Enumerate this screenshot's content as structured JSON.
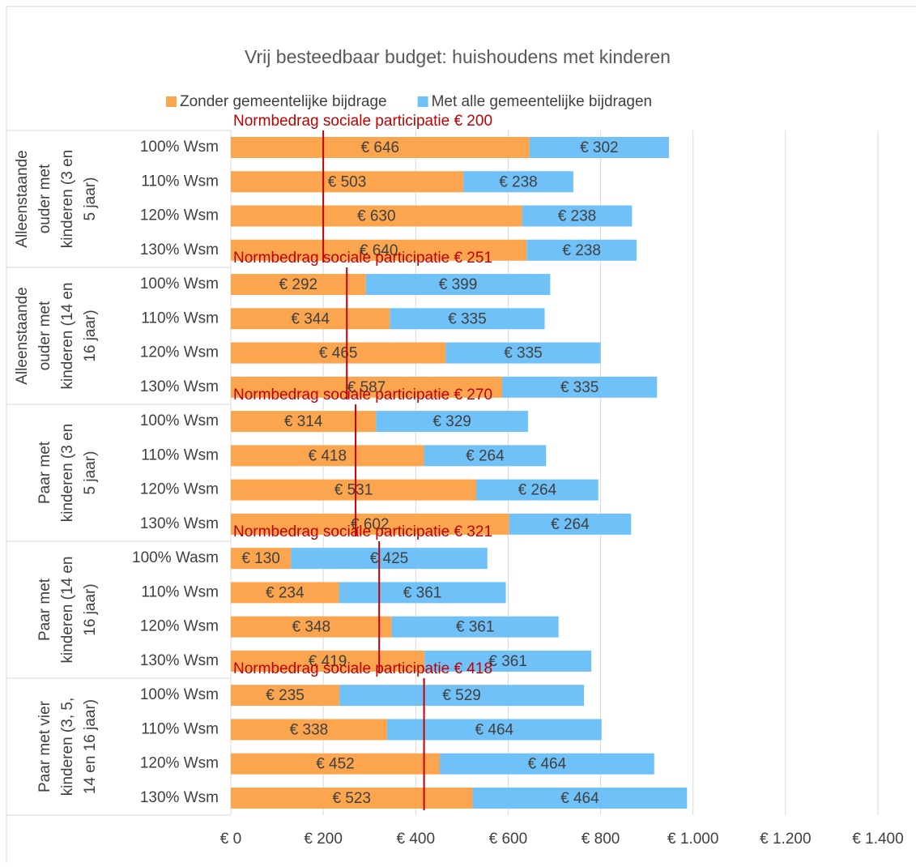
{
  "chart_data": {
    "type": "stacked_barh",
    "title": "Vrij besteedbaar budget: huishoudens met kinderen",
    "categories": [
      "100% Wsm",
      "110% Wsm",
      "120% Wsm",
      "130% Wsm",
      "100% Wsm",
      "110% Wsm",
      "120% Wsm",
      "130% Wsm",
      "100% Wsm",
      "110% Wsm",
      "120% Wsm",
      "130% Wsm",
      "100% Wasm",
      "110% Wsm",
      "120% Wsm",
      "130% Wsm",
      "100% Wsm",
      "110% Wsm",
      "120% Wsm",
      "130% Wsm"
    ],
    "groups": [
      {
        "label_lines": [
          "Alleenstaande",
          "ouder met",
          "kinderen (3 en",
          "5 jaar)"
        ]
      },
      {
        "label_lines": [
          "Alleenstaande",
          "ouder met",
          "kinderen (14 en",
          "16 jaar)"
        ]
      },
      {
        "label_lines": [
          "Paar met",
          "kinderen (3 en",
          "5 jaar)"
        ]
      },
      {
        "label_lines": [
          "Paar met",
          "kinderen (14 en",
          "16 jaar)"
        ]
      },
      {
        "label_lines": [
          "Paar met vier",
          "kinderen (3, 5,",
          "14 en 16 jaar)"
        ]
      }
    ],
    "series": [
      {
        "name": "Zonder gemeentelijke bijdrage",
        "color": "#fba54f",
        "values": [
          646,
          503,
          630,
          640,
          292,
          344,
          465,
          587,
          314,
          418,
          531,
          602,
          130,
          234,
          348,
          419,
          235,
          338,
          452,
          523
        ],
        "value_labels": [
          "€ 646",
          "€ 503",
          "€ 630",
          "€ 640",
          "€ 292",
          "€ 344",
          "€ 465",
          "€ 587",
          "€ 314",
          "€ 418",
          "€ 531",
          "€ 602",
          "€ 130",
          "€ 234",
          "€ 348",
          "€ 419",
          "€ 235",
          "€ 338",
          "€ 452",
          "€ 523"
        ]
      },
      {
        "name": "Met alle gemeentelijke bijdragen",
        "color": "#70c1f8",
        "values": [
          302,
          238,
          238,
          238,
          399,
          335,
          335,
          335,
          329,
          264,
          264,
          264,
          425,
          361,
          361,
          361,
          529,
          464,
          464,
          464
        ],
        "value_labels": [
          "€ 302",
          "€ 238",
          "€ 238",
          "€ 238",
          "€ 399",
          "€ 335",
          "€ 335",
          "€ 335",
          "€ 329",
          "€ 264",
          "€ 264",
          "€ 264",
          "€ 425",
          "€ 361",
          "€ 361",
          "€ 361",
          "€ 529",
          "€ 464",
          "€ 464",
          "€ 464"
        ]
      }
    ],
    "reference_lines": [
      {
        "label": "Normbedrag sociale participatie € 200",
        "value": 200,
        "color": "#c00000"
      },
      {
        "label": "Normbedrag sociale participatie € 251",
        "value": 251,
        "color": "#c00000"
      },
      {
        "label": "Normbedrag sociale participatie € 270",
        "value": 270,
        "color": "#c00000"
      },
      {
        "label": "Normbedrag sociale participatie € 321",
        "value": 321,
        "color": "#c00000"
      },
      {
        "label": "Normbedrag sociale participatie € 418",
        "value": 418,
        "color": "#c00000"
      }
    ],
    "xlim": [
      0,
      1400
    ],
    "xticks": [
      {
        "value": 0,
        "label": "€ 0"
      },
      {
        "value": 200,
        "label": "€ 200"
      },
      {
        "value": 400,
        "label": "€ 400"
      },
      {
        "value": 600,
        "label": "€ 600"
      },
      {
        "value": 800,
        "label": "€ 800"
      },
      {
        "value": 1000,
        "label": "€ 1.000"
      },
      {
        "value": 1200,
        "label": "€ 1.200"
      },
      {
        "value": 1400,
        "label": "€ 1.400"
      }
    ],
    "grid": true
  }
}
